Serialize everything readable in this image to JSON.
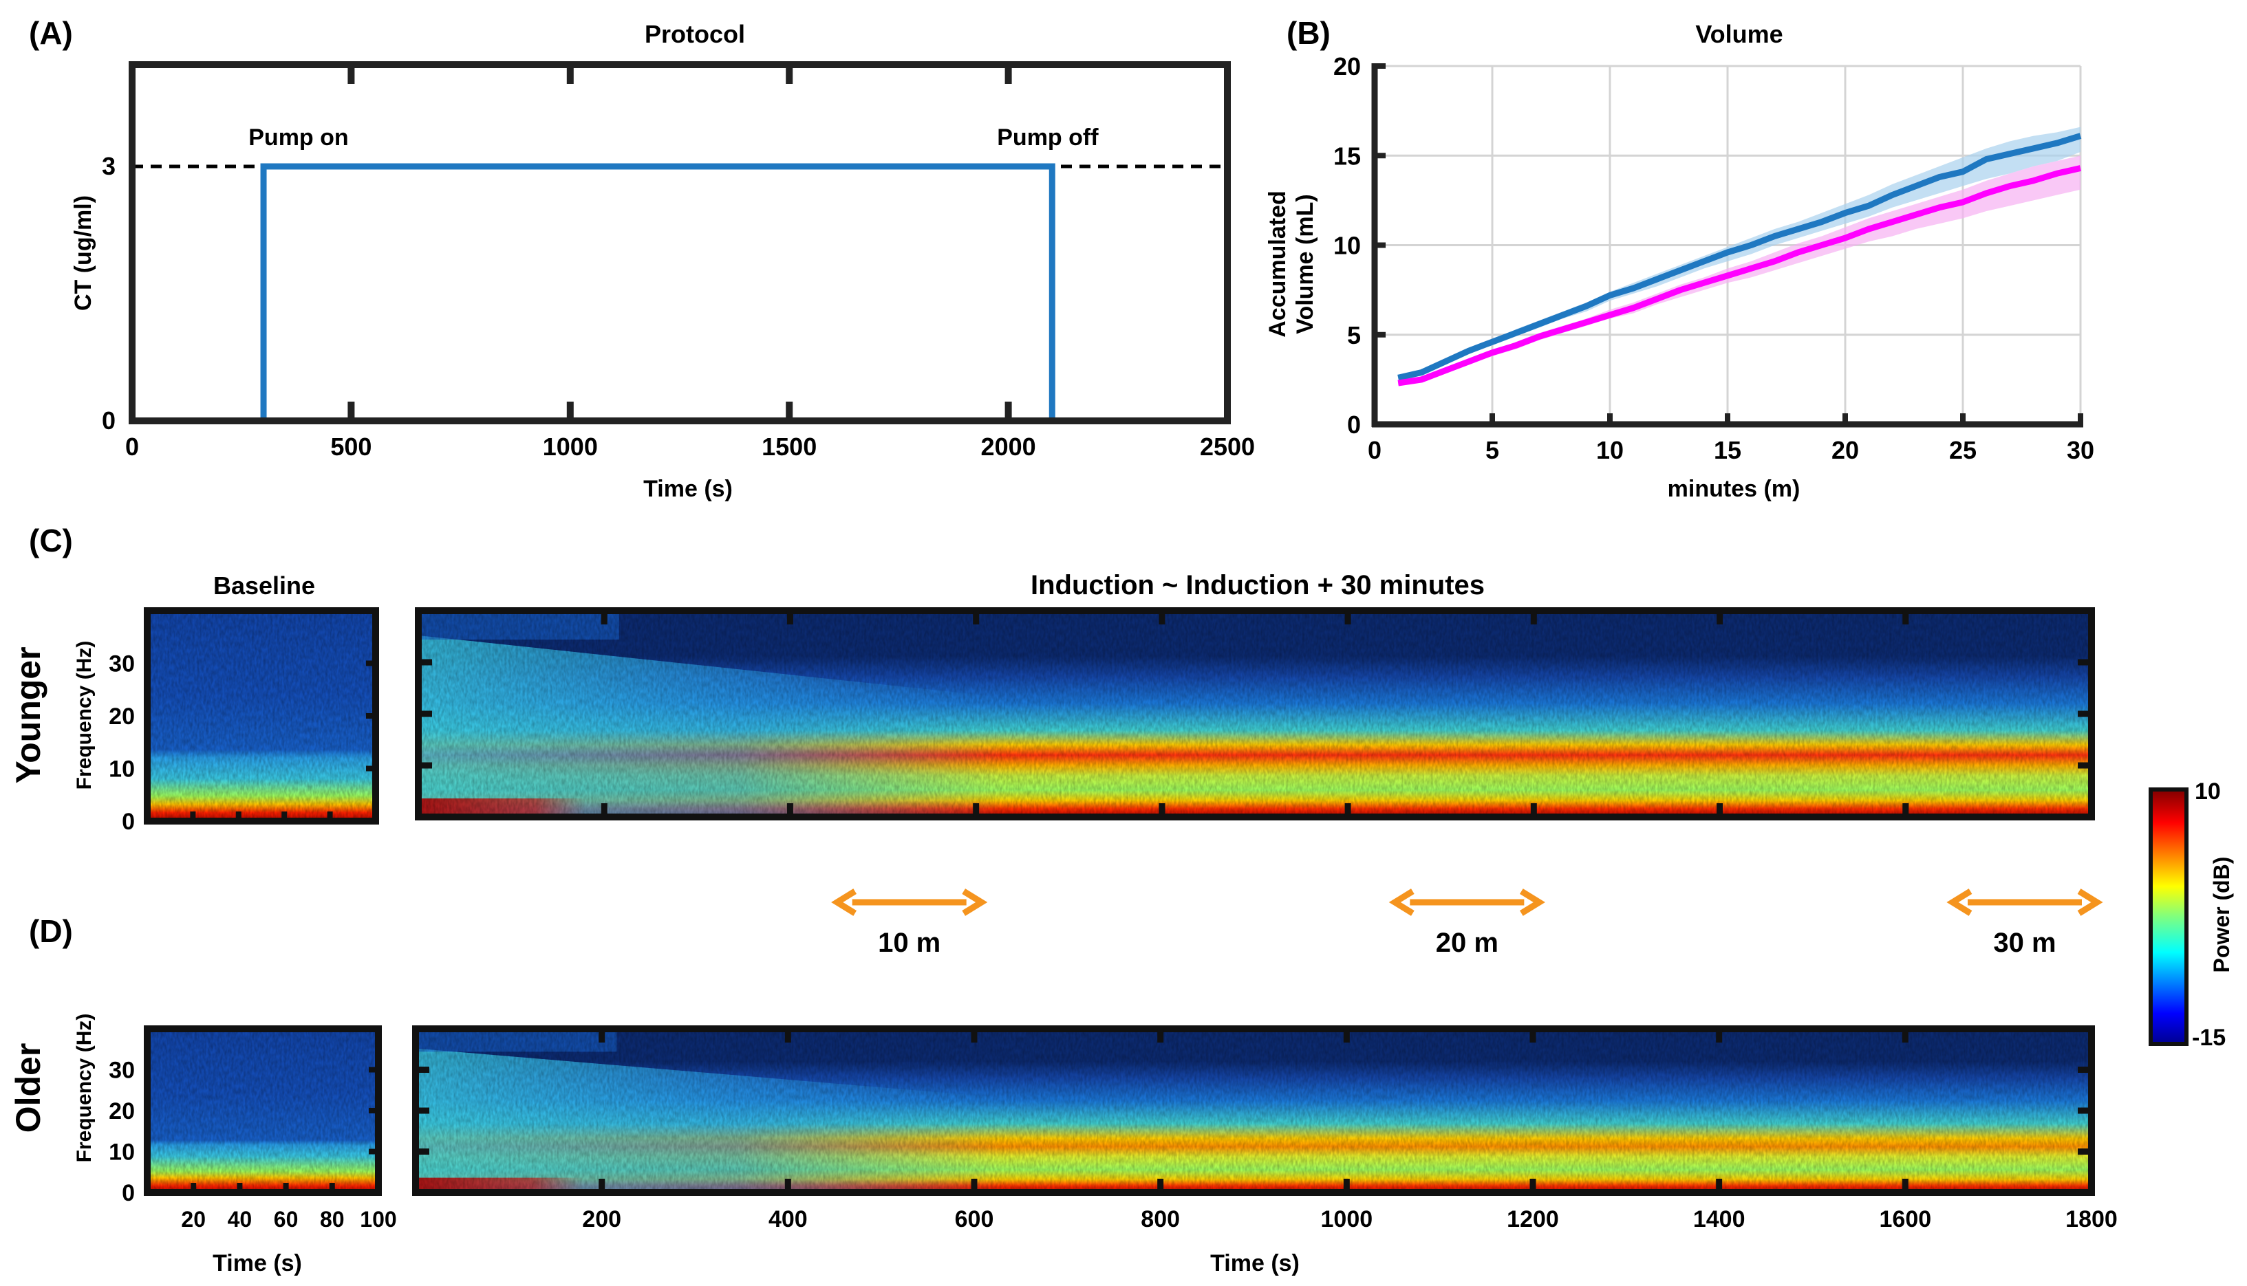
{
  "panel_labels": {
    "A": "(A)",
    "B": "(B)",
    "C": "(C)",
    "D": "(D)"
  },
  "colors": {
    "protocol_line": "#1f78c1",
    "series_younger": "#1f78c1",
    "series_older": "#ff00ff",
    "band_younger": "#a9d1ee",
    "band_older": "#f7b0f2",
    "arrow": "#f5941e",
    "spectrogram_background": "#0a2a70"
  },
  "chart_data": [
    {
      "id": "protocol",
      "type": "line",
      "title": "Protocol",
      "xlabel": "Time (s)",
      "ylabel": "CT (ug/ml)",
      "xlim": [
        0,
        2500
      ],
      "ylim": [
        0,
        4.2
      ],
      "xticks": [
        0,
        500,
        1000,
        1500,
        2000,
        2500
      ],
      "yticks": [
        0,
        3
      ],
      "x": [
        0,
        300,
        300,
        2100,
        2100,
        2400
      ],
      "y": [
        0,
        0,
        3,
        3,
        0,
        0
      ],
      "target_level": 3,
      "annotations": [
        {
          "text": "Pump on",
          "x": 380,
          "y": 3.35
        },
        {
          "text": "Pump off",
          "x": 2090,
          "y": 3.35
        }
      ]
    },
    {
      "id": "volume",
      "type": "line",
      "title": "Volume",
      "xlabel": "minutes (m)",
      "ylabel_lines": [
        "Accumulated",
        "Volume (mL)"
      ],
      "xlim": [
        0,
        30
      ],
      "ylim": [
        0,
        20
      ],
      "xticks": [
        0,
        5,
        10,
        15,
        20,
        25,
        30
      ],
      "yticks": [
        0,
        5,
        10,
        15,
        20
      ],
      "grid": true,
      "x": [
        1,
        2,
        3,
        4,
        5,
        6,
        7,
        8,
        9,
        10,
        11,
        12,
        13,
        14,
        15,
        16,
        17,
        18,
        19,
        20,
        21,
        22,
        23,
        24,
        25,
        26,
        27,
        28,
        29,
        30
      ],
      "series": [
        {
          "name": "Younger",
          "values": [
            2.6,
            2.9,
            3.5,
            4.1,
            4.6,
            5.1,
            5.6,
            6.1,
            6.6,
            7.2,
            7.6,
            8.1,
            8.6,
            9.1,
            9.6,
            10.0,
            10.5,
            10.9,
            11.3,
            11.8,
            12.2,
            12.8,
            13.3,
            13.8,
            14.1,
            14.8,
            15.1,
            15.4,
            15.7,
            16.1
          ],
          "lower": [
            2.5,
            2.8,
            3.4,
            4.0,
            4.4,
            4.9,
            5.4,
            5.9,
            6.3,
            6.9,
            7.3,
            7.7,
            8.2,
            8.7,
            9.1,
            9.5,
            10.0,
            10.4,
            10.8,
            11.2,
            11.6,
            12.1,
            12.5,
            12.9,
            13.3,
            13.7,
            14.0,
            14.4,
            14.7,
            15.2
          ],
          "upper": [
            2.7,
            3.0,
            3.6,
            4.2,
            4.7,
            5.3,
            5.8,
            6.3,
            6.8,
            7.4,
            7.9,
            8.4,
            8.9,
            9.4,
            9.9,
            10.4,
            10.9,
            11.3,
            11.8,
            12.3,
            12.8,
            13.4,
            13.9,
            14.4,
            14.9,
            15.4,
            15.8,
            16.1,
            16.3,
            16.6
          ]
        },
        {
          "name": "Older",
          "values": [
            2.3,
            2.5,
            3.0,
            3.5,
            4.0,
            4.4,
            4.9,
            5.3,
            5.7,
            6.1,
            6.5,
            7.0,
            7.5,
            7.9,
            8.3,
            8.7,
            9.1,
            9.6,
            10.0,
            10.4,
            10.9,
            11.3,
            11.7,
            12.1,
            12.4,
            12.9,
            13.3,
            13.6,
            14.0,
            14.3
          ],
          "lower": [
            2.2,
            2.4,
            2.9,
            3.4,
            3.8,
            4.2,
            4.7,
            5.1,
            5.5,
            5.9,
            6.2,
            6.7,
            7.1,
            7.5,
            7.9,
            8.2,
            8.6,
            9.0,
            9.4,
            9.8,
            10.2,
            10.5,
            10.9,
            11.2,
            11.5,
            11.9,
            12.2,
            12.5,
            12.8,
            13.1
          ],
          "upper": [
            2.4,
            2.6,
            3.1,
            3.6,
            4.1,
            4.6,
            5.1,
            5.5,
            5.9,
            6.4,
            6.8,
            7.3,
            7.8,
            8.2,
            8.7,
            9.1,
            9.6,
            10.1,
            10.5,
            11.0,
            11.5,
            11.9,
            12.3,
            12.7,
            13.1,
            13.6,
            14.0,
            14.4,
            14.7,
            15.0
          ]
        }
      ]
    },
    {
      "id": "spectrograms",
      "type": "heatmap",
      "colorbar": {
        "label": "Power (dB)",
        "min": -15,
        "max": 10
      },
      "frequency_axis": {
        "label": "Frequency (Hz)",
        "ticks": [
          0,
          10,
          20,
          30
        ],
        "max": 40
      },
      "baseline": {
        "title": "Baseline",
        "xlabel": "Time (s)",
        "xlim": [
          0,
          100
        ],
        "xticks": [
          20,
          40,
          60,
          80,
          100
        ]
      },
      "induction": {
        "title": "Induction ~  Induction + 30 minutes",
        "xlabel": "Time (s)",
        "xlim": [
          0,
          1800
        ],
        "xticks": [
          200,
          400,
          600,
          800,
          1000,
          1200,
          1400,
          1600,
          1800
        ]
      },
      "groups": [
        {
          "name": "Younger",
          "row": "C"
        },
        {
          "name": "Older",
          "row": "D"
        }
      ],
      "markers": [
        {
          "label": "10 m",
          "time_s": 600
        },
        {
          "label": "20 m",
          "time_s": 1200
        },
        {
          "label": "30 m",
          "time_s": 1800
        }
      ]
    }
  ]
}
